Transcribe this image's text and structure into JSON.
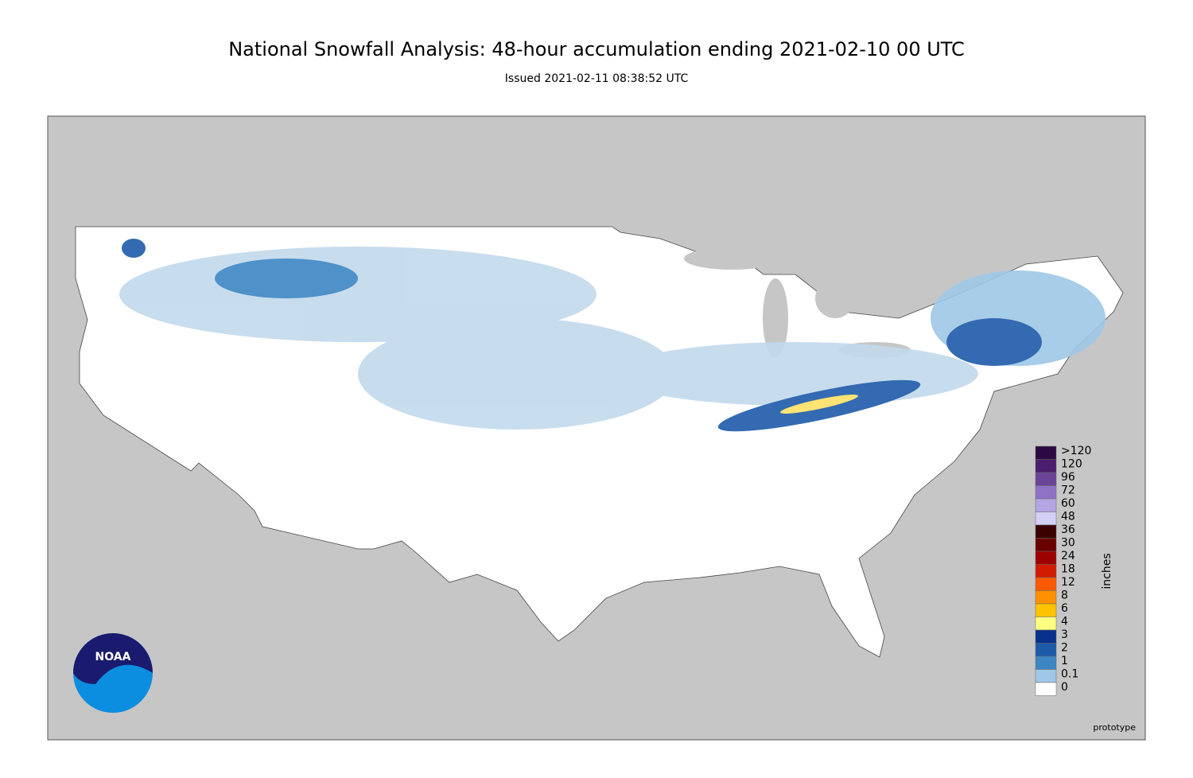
{
  "header": {
    "title": "National Snowfall Analysis: 48-hour accumulation ending 2021-02-10 00 UTC",
    "subtitle": "Issued 2021-02-11 08:38:52 UTC"
  },
  "legend": {
    "unit": "inches",
    "bins": [
      {
        "label": ">120",
        "color": "#2a0a40"
      },
      {
        "label": "120",
        "color": "#4a1d6e"
      },
      {
        "label": "96",
        "color": "#6b4399"
      },
      {
        "label": "72",
        "color": "#8f72c6"
      },
      {
        "label": "60",
        "color": "#b3a6e3"
      },
      {
        "label": "48",
        "color": "#d4cff7"
      },
      {
        "label": "36",
        "color": "#3b0000"
      },
      {
        "label": "30",
        "color": "#6b0000"
      },
      {
        "label": "24",
        "color": "#9e0000"
      },
      {
        "label": "18",
        "color": "#d41a00"
      },
      {
        "label": "12",
        "color": "#ff5a00"
      },
      {
        "label": "8",
        "color": "#ff9100"
      },
      {
        "label": "6",
        "color": "#ffc400"
      },
      {
        "label": "4",
        "color": "#ffff80"
      },
      {
        "label": "3",
        "color": "#08308c"
      },
      {
        "label": "2",
        "color": "#1e5aaa"
      },
      {
        "label": "1",
        "color": "#3c86c4"
      },
      {
        "label": "0.1",
        "color": "#9ec8e6"
      },
      {
        "label": "0",
        "color": "#ffffff"
      }
    ]
  },
  "logo": {
    "text": "NOAA"
  },
  "footer": {
    "note": "prototype"
  }
}
